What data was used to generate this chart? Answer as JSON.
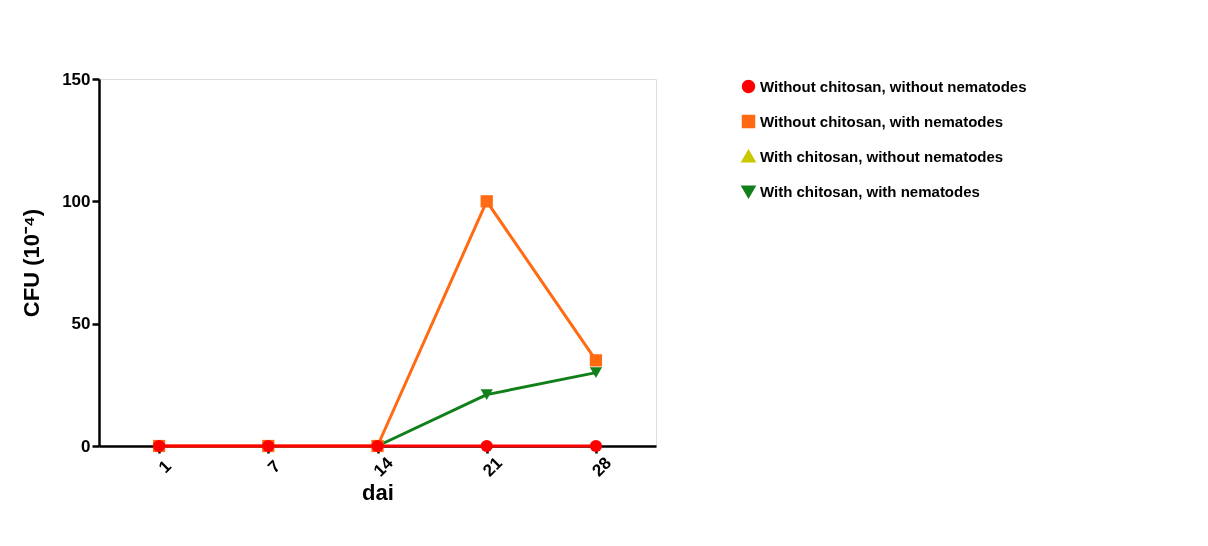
{
  "chart_data": {
    "type": "line",
    "xlabel": "dai",
    "ylabel": "CFU (10⁻⁴)",
    "categories": [
      "1",
      "7",
      "14",
      "21",
      "28"
    ],
    "ylim": [
      0,
      150
    ],
    "yticks": [
      0,
      50,
      100,
      150
    ],
    "grid": false,
    "legend": "top right",
    "line_style": "solid",
    "series": [
      {
        "name": "Without chitosan, without nematodes",
        "color": "#ff0000",
        "marker": "circle",
        "values": [
          0,
          0,
          0,
          0,
          0
        ]
      },
      {
        "name": "Without chitosan, with nematodes",
        "color": "#ff6a13",
        "marker": "square",
        "values": [
          0,
          0,
          0,
          100,
          35
        ]
      },
      {
        "name": "With chitosan, without nematodes",
        "color": "#c8c800",
        "marker": "triangle",
        "values": [
          null,
          null,
          null,
          null,
          null
        ]
      },
      {
        "name": "With chitosan, with nematodes",
        "color": "#12801a",
        "marker": "triangle-down",
        "values": [
          null,
          null,
          0,
          21,
          30
        ]
      }
    ]
  }
}
